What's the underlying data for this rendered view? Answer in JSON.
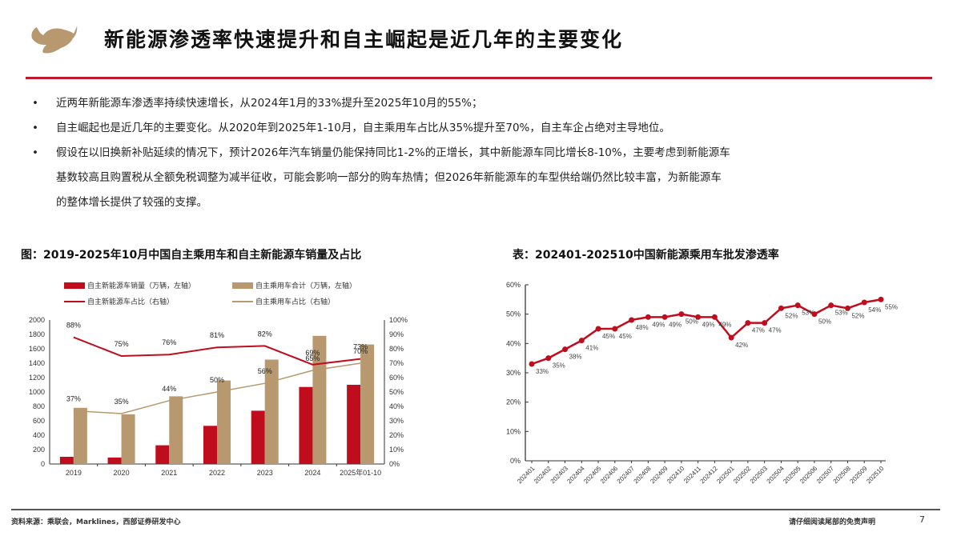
{
  "header": {
    "title": "新能源渗透率快速提升和自主崛起是近几年的主要变化",
    "accent_color": "#c0192b",
    "logo_color": "#b8986e"
  },
  "bullets": [
    {
      "marker": "•",
      "lines": [
        "近两年新能源车渗透率持续快速增长，从2024年1月的33%提升至2025年10月的55%；"
      ]
    },
    {
      "marker": "•",
      "lines": [
        "自主崛起也是近几年的主要变化。从2020年到2025年1-10月，自主乘用车占比从35%提升至70%，自主车企占绝对主导地位。"
      ]
    },
    {
      "marker": "•",
      "lines": [
        "假设在以旧换新补贴延续的情况下，预计2026年汽车销量仍能保持同比1-2%的正增长，其中新能源车同比增长8-10%，主要考虑到新能源车",
        "基数较高且购置税从全额免税调整为减半征收，可能会影响一部分的购车热情；但2026年新能源车的车型供给端仍然比较丰富，为新能源车",
        "的整体增长提供了较强的支撑。"
      ]
    }
  ],
  "chart_data": [
    {
      "type": "bar",
      "title": "图：2019-2025年10月中国自主乘用车和自主新能源车销量及占比",
      "categories": [
        "2019",
        "2020",
        "2021",
        "2022",
        "2023",
        "2024",
        "2025年01-10"
      ],
      "series": [
        {
          "name": "自主新能源车销量（万辆，左轴）",
          "kind": "bar",
          "axis": "left",
          "color": "#c00d1e",
          "values": [
            100,
            90,
            260,
            530,
            740,
            1070,
            1100
          ]
        },
        {
          "name": "自主乘用车合计（万辆，左轴）",
          "kind": "bar",
          "axis": "left",
          "color": "#b8986e",
          "values": [
            780,
            690,
            940,
            1160,
            1450,
            1780,
            1660
          ]
        },
        {
          "name": "自主新能源车占比（右轴）",
          "kind": "line",
          "axis": "right",
          "color": "#c00d1e",
          "values": [
            88,
            75,
            76,
            81,
            82,
            69,
            73
          ],
          "labels": [
            "88%",
            "75%",
            "76%",
            "81%",
            "82%",
            "69%",
            "73%"
          ]
        },
        {
          "name": "自主乘用车占比（右轴）",
          "kind": "line",
          "axis": "right",
          "color": "#b8986e",
          "values": [
            37,
            35,
            44,
            50,
            56,
            65,
            70
          ],
          "labels": [
            "37%",
            "35%",
            "44%",
            "50%",
            "56%",
            "65%",
            "70%"
          ]
        }
      ],
      "ylim_left": [
        0,
        2000
      ],
      "yticks_left": [
        "0",
        "200",
        "400",
        "600",
        "800",
        "1000",
        "1200",
        "1400",
        "1600",
        "1800",
        "2000"
      ],
      "ylim_right": [
        0,
        100
      ],
      "yticks_right": [
        "0%",
        "10%",
        "20%",
        "30%",
        "40%",
        "50%",
        "60%",
        "70%",
        "80%",
        "90%",
        "100%"
      ],
      "legend_position": "top"
    },
    {
      "type": "line",
      "title": "表：202401-202510中国新能源乘用车批发渗透率",
      "categories": [
        "202401",
        "202402",
        "202403",
        "202404",
        "202405",
        "202406",
        "202407",
        "202408",
        "202409",
        "202410",
        "202411",
        "202412",
        "202501",
        "202502",
        "202503",
        "202504",
        "202505",
        "202506",
        "202507",
        "202508",
        "202509",
        "202510"
      ],
      "series": [
        {
          "name": "新能源乘用车批发渗透率",
          "color": "#c00d1e",
          "values": [
            33,
            35,
            38,
            41,
            45,
            45,
            48,
            49,
            49,
            50,
            49,
            49,
            42,
            47,
            47,
            52,
            53,
            50,
            53,
            52,
            54,
            55
          ],
          "labels": [
            "33%",
            "35%",
            "38%",
            "41%",
            "45%",
            "45%",
            "48%",
            "49%",
            "49%",
            "50%",
            "49%",
            "49%",
            "42%",
            "47%",
            "47%",
            "52%",
            "53%",
            "50%",
            "53%",
            "52%",
            "54%",
            "55%"
          ]
        }
      ],
      "ylim": [
        0,
        60
      ],
      "yticks": [
        "0%",
        "10%",
        "20%",
        "30%",
        "40%",
        "50%",
        "60%"
      ],
      "grid": false
    }
  ],
  "footer": {
    "source": "资料来源：乘联会，Marklines，西部证券研发中心",
    "disclaimer": "请仔细阅读尾部的免责声明",
    "page": "7"
  }
}
